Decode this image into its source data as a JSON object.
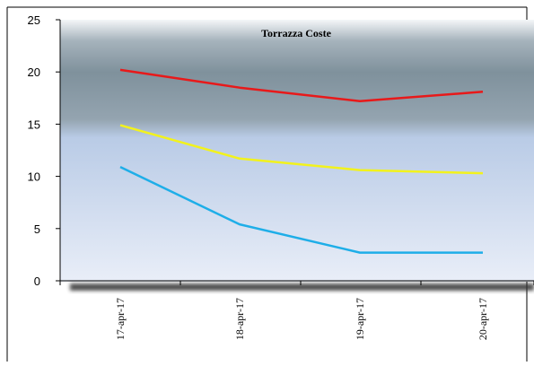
{
  "chart_data": {
    "type": "line",
    "title": "Torrazza Coste",
    "xlabel": "",
    "ylabel": "",
    "categories": [
      "17-apr-17",
      "18-apr-17",
      "19-apr-17",
      "20-apr-17"
    ],
    "ylim": [
      0,
      25
    ],
    "yticks": [
      0,
      5,
      10,
      15,
      20,
      25
    ],
    "grid": false,
    "legend": "none",
    "series": [
      {
        "values": [
          20.2,
          18.5,
          17.2,
          18.1
        ],
        "color": "#e8191a"
      },
      {
        "values": [
          14.9,
          11.7,
          10.6,
          10.3
        ],
        "color": "#f2f21c"
      },
      {
        "values": [
          10.9,
          5.4,
          2.7,
          2.7
        ],
        "color": "#1eaee8"
      }
    ]
  }
}
